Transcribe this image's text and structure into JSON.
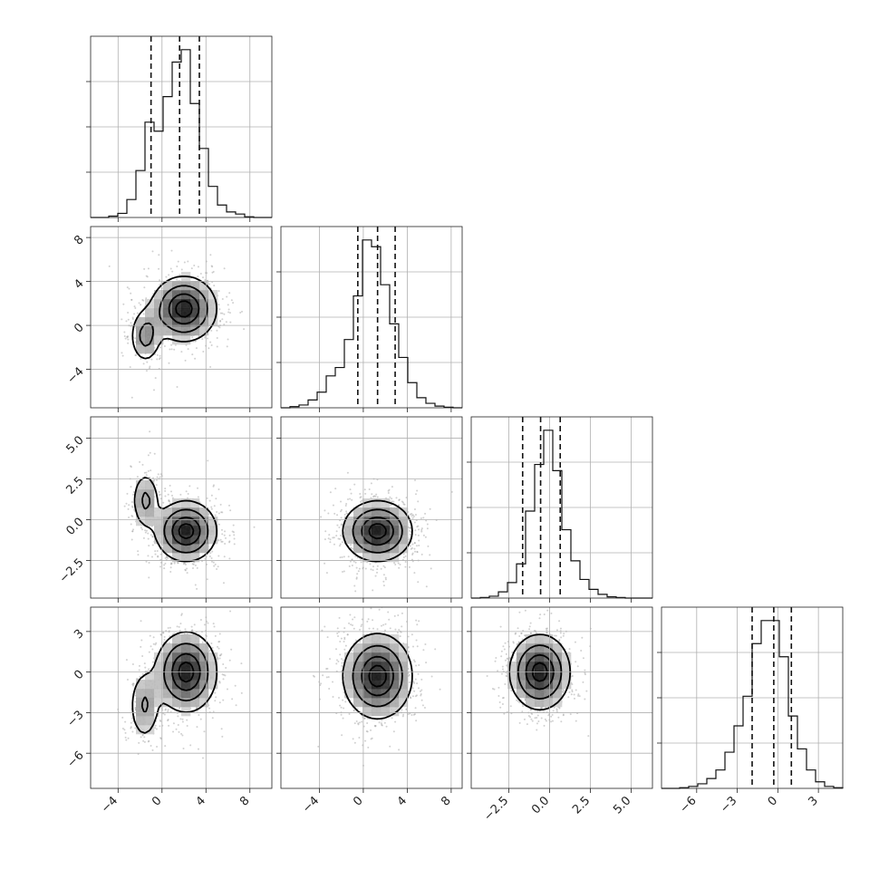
{
  "chart_data": {
    "type": "corner",
    "grid": true,
    "tick_color": "#222222",
    "grid_color": "#b0b0b0",
    "density_colormap": [
      "#ffffff",
      "#000000"
    ],
    "params": [
      {
        "range": [
          -6.5,
          10.0
        ],
        "ticks": [
          -4,
          0,
          4,
          8
        ],
        "tick_labels": [
          "−4",
          "0",
          "4",
          "8"
        ],
        "quantiles": [
          -1.0,
          1.6,
          3.4
        ]
      },
      {
        "range": [
          -7.5,
          9.0
        ],
        "ticks": [
          -4,
          0,
          4,
          8
        ],
        "tick_labels": [
          "−4",
          "0",
          "4",
          "8"
        ],
        "quantiles": [
          -0.5,
          1.3,
          2.9
        ]
      },
      {
        "range": [
          -4.8,
          6.3
        ],
        "ticks": [
          -2.5,
          0.0,
          2.5,
          5.0
        ],
        "tick_labels": [
          "−2.5",
          "0.0",
          "2.5",
          "5.0"
        ],
        "quantiles": [
          -1.65,
          -0.55,
          0.65
        ]
      },
      {
        "range": [
          -8.6,
          4.8
        ],
        "ticks": [
          -6,
          -3,
          0,
          3
        ],
        "tick_labels": [
          "−6",
          "−3",
          "0",
          "3"
        ],
        "quantiles": [
          -1.9,
          -0.3,
          1.0
        ]
      }
    ],
    "histograms": [
      {
        "param": 0,
        "edges": [
          -6.5,
          -5.675,
          -4.85,
          -4.025,
          -3.2,
          -2.375,
          -1.55,
          -0.725,
          0.1,
          0.925,
          1.75,
          2.575,
          3.4,
          4.225,
          5.05,
          5.875,
          6.7,
          7.525,
          8.35,
          9.175,
          10.0
        ],
        "counts": [
          0,
          0,
          2,
          6,
          26,
          68,
          138,
          125,
          175,
          225,
          243,
          165,
          100,
          45,
          18,
          8,
          5,
          1,
          0,
          0
        ]
      },
      {
        "param": 1,
        "edges": [
          -7.5,
          -6.675,
          -5.85,
          -5.025,
          -4.2,
          -3.375,
          -2.55,
          -1.725,
          -0.9,
          -0.075,
          0.75,
          1.575,
          2.4,
          3.225,
          4.05,
          4.875,
          5.7,
          6.525,
          7.35,
          8.175,
          9.0
        ],
        "counts": [
          0,
          2,
          5,
          14,
          28,
          57,
          72,
          122,
          200,
          300,
          288,
          220,
          150,
          90,
          45,
          18,
          8,
          3,
          1,
          0
        ]
      },
      {
        "param": 2,
        "edges": [
          -4.8,
          -4.245,
          -3.69,
          -3.135,
          -2.58,
          -2.025,
          -1.47,
          -0.915,
          -0.36,
          0.195,
          0.75,
          1.305,
          1.86,
          2.415,
          2.97,
          3.525,
          4.08,
          4.635,
          5.19,
          5.745,
          6.3
        ],
        "counts": [
          0,
          1,
          3,
          10,
          25,
          55,
          140,
          215,
          270,
          205,
          110,
          60,
          30,
          14,
          6,
          2,
          1,
          0,
          0,
          0
        ]
      },
      {
        "param": 3,
        "edges": [
          -8.6,
          -7.93,
          -7.26,
          -6.59,
          -5.92,
          -5.25,
          -4.58,
          -3.91,
          -3.24,
          -2.57,
          -1.9,
          -1.23,
          -0.56,
          0.11,
          0.78,
          1.45,
          2.12,
          2.79,
          3.46,
          4.13,
          4.8
        ],
        "counts": [
          0,
          0,
          1,
          3,
          7,
          15,
          28,
          55,
          95,
          140,
          220,
          255,
          255,
          200,
          110,
          60,
          28,
          10,
          3,
          1
        ]
      }
    ],
    "density_panels": [
      {
        "x_param": 0,
        "y_param": 1,
        "components": [
          {
            "mean": [
              2.0,
              1.5
            ],
            "sd": [
              1.6,
              1.6
            ],
            "weight": 0.82
          },
          {
            "mean": [
              -1.5,
              -1.0
            ],
            "sd": [
              0.8,
              1.4
            ],
            "weight": 0.18
          }
        ]
      },
      {
        "x_param": 0,
        "y_param": 2,
        "components": [
          {
            "mean": [
              2.2,
              -0.7
            ],
            "sd": [
              1.5,
              1.0
            ],
            "weight": 0.82
          },
          {
            "mean": [
              -1.5,
              1.2
            ],
            "sd": [
              0.7,
              1.0
            ],
            "weight": 0.18
          }
        ]
      },
      {
        "x_param": 1,
        "y_param": 2,
        "components": [
          {
            "mean": [
              1.3,
              -0.7
            ],
            "sd": [
              1.7,
              1.0
            ],
            "weight": 1.0
          }
        ]
      },
      {
        "x_param": 0,
        "y_param": 3,
        "components": [
          {
            "mean": [
              2.2,
              0.0
            ],
            "sd": [
              1.5,
              1.6
            ],
            "weight": 0.82
          },
          {
            "mean": [
              -1.6,
              -2.5
            ],
            "sd": [
              0.8,
              1.5
            ],
            "weight": 0.18
          }
        ]
      },
      {
        "x_param": 1,
        "y_param": 3,
        "components": [
          {
            "mean": [
              1.3,
              -0.3
            ],
            "sd": [
              1.7,
              1.7
            ],
            "weight": 1.0
          }
        ]
      },
      {
        "x_param": 2,
        "y_param": 3,
        "components": [
          {
            "mean": [
              -0.6,
              0.0
            ],
            "sd": [
              1.0,
              1.5
            ],
            "weight": 1.0
          }
        ]
      }
    ]
  }
}
